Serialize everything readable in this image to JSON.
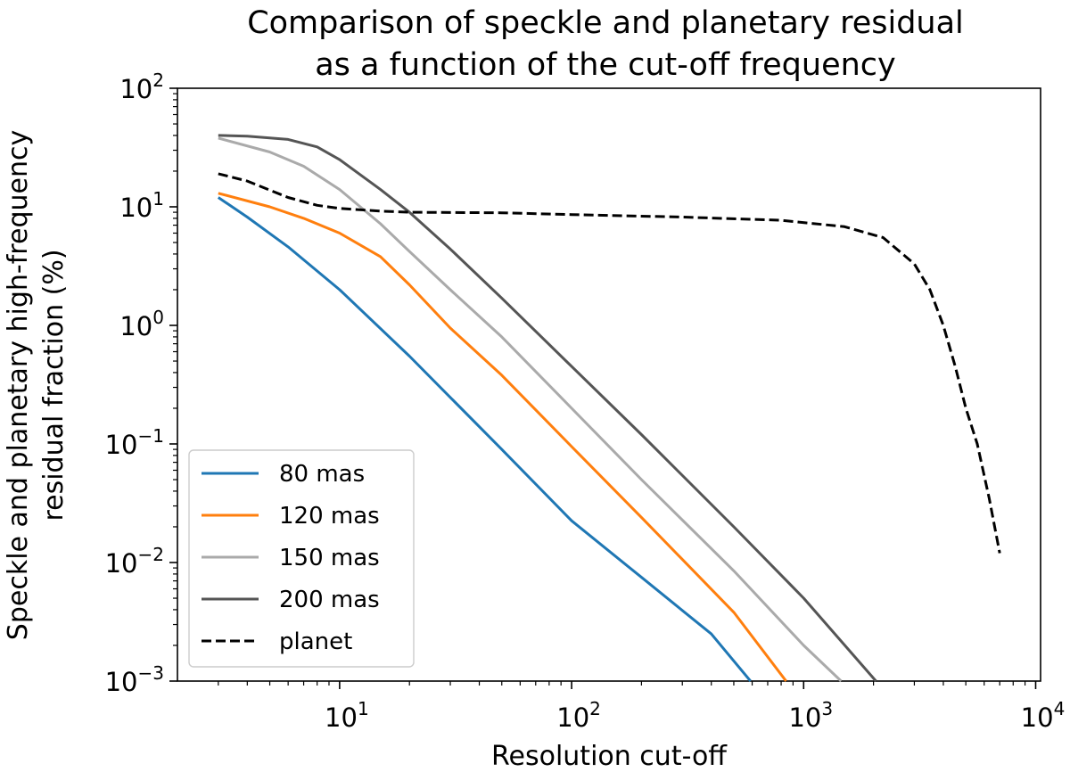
{
  "chart_data": {
    "type": "line",
    "title_line1": "Comparison of speckle and planetary residual",
    "title_line2": "as a function of the cut-off frequency",
    "xlabel": "Resolution cut-off",
    "ylabel_line1": "Speckle and planetary high-frequency",
    "ylabel_line2": "residual fraction (%)",
    "x_scale": "log",
    "y_scale": "log",
    "xlim": [
      2.0,
      10500
    ],
    "ylim": [
      0.001,
      100
    ],
    "grid": false,
    "legend_position": "lower-left",
    "x_ticks": [
      {
        "value": 10,
        "base": "10",
        "exp": "1"
      },
      {
        "value": 100,
        "base": "10",
        "exp": "2"
      },
      {
        "value": 1000,
        "base": "10",
        "exp": "3"
      },
      {
        "value": 10000,
        "base": "10",
        "exp": "4"
      }
    ],
    "y_ticks": [
      {
        "value": 0.001,
        "base": "10",
        "exp": "−3"
      },
      {
        "value": 0.01,
        "base": "10",
        "exp": "−2"
      },
      {
        "value": 0.1,
        "base": "10",
        "exp": "−1"
      },
      {
        "value": 1,
        "base": "10",
        "exp": "0"
      },
      {
        "value": 10,
        "base": "10",
        "exp": "1"
      },
      {
        "value": 100,
        "base": "10",
        "exp": "2"
      }
    ],
    "series": [
      {
        "name": "80 mas",
        "color": "#1f77b4",
        "dash": "solid",
        "points": [
          [
            3,
            12
          ],
          [
            4,
            8.2
          ],
          [
            6,
            4.6
          ],
          [
            10,
            2.0
          ],
          [
            20,
            0.55
          ],
          [
            50,
            0.09
          ],
          [
            100,
            0.0225
          ],
          [
            200,
            0.0075
          ],
          [
            400,
            0.0025
          ],
          [
            590,
            0.001
          ]
        ]
      },
      {
        "name": "120 mas",
        "color": "#ff7f0e",
        "dash": "solid",
        "points": [
          [
            3,
            13
          ],
          [
            5,
            10
          ],
          [
            7,
            8
          ],
          [
            10,
            6
          ],
          [
            15,
            3.8
          ],
          [
            20,
            2.2
          ],
          [
            30,
            0.95
          ],
          [
            50,
            0.38
          ],
          [
            100,
            0.095
          ],
          [
            200,
            0.024
          ],
          [
            500,
            0.0038
          ],
          [
            840,
            0.001
          ]
        ]
      },
      {
        "name": "150 mas",
        "color": "#aaaaaa",
        "dash": "solid",
        "points": [
          [
            3,
            38
          ],
          [
            5,
            29
          ],
          [
            7,
            22
          ],
          [
            10,
            14
          ],
          [
            15,
            7.2
          ],
          [
            20,
            4.2
          ],
          [
            30,
            2.0
          ],
          [
            50,
            0.8
          ],
          [
            100,
            0.2
          ],
          [
            200,
            0.05
          ],
          [
            500,
            0.0085
          ],
          [
            1000,
            0.002
          ],
          [
            1450,
            0.001
          ]
        ]
      },
      {
        "name": "200 mas",
        "color": "#555555",
        "dash": "solid",
        "points": [
          [
            3,
            40
          ],
          [
            4,
            39.5
          ],
          [
            6,
            37
          ],
          [
            8,
            32
          ],
          [
            10,
            25
          ],
          [
            15,
            14
          ],
          [
            20,
            9
          ],
          [
            30,
            4.4
          ],
          [
            50,
            1.7
          ],
          [
            100,
            0.45
          ],
          [
            200,
            0.12
          ],
          [
            500,
            0.02
          ],
          [
            1000,
            0.005
          ],
          [
            2050,
            0.001
          ]
        ]
      },
      {
        "name": "planet",
        "color": "#000000",
        "dash": "dashed",
        "points": [
          [
            3,
            19
          ],
          [
            4,
            16.5
          ],
          [
            6,
            12
          ],
          [
            8,
            10.3
          ],
          [
            10,
            9.7
          ],
          [
            15,
            9.2
          ],
          [
            20,
            9.0
          ],
          [
            50,
            8.9
          ],
          [
            100,
            8.6
          ],
          [
            300,
            8.2
          ],
          [
            800,
            7.7
          ],
          [
            1500,
            6.8
          ],
          [
            2200,
            5.5
          ],
          [
            3000,
            3.3
          ],
          [
            3500,
            2.0
          ],
          [
            4000,
            1.0
          ],
          [
            4500,
            0.45
          ],
          [
            5000,
            0.2
          ],
          [
            5600,
            0.1
          ],
          [
            6300,
            0.035
          ],
          [
            7000,
            0.012
          ]
        ]
      }
    ]
  }
}
